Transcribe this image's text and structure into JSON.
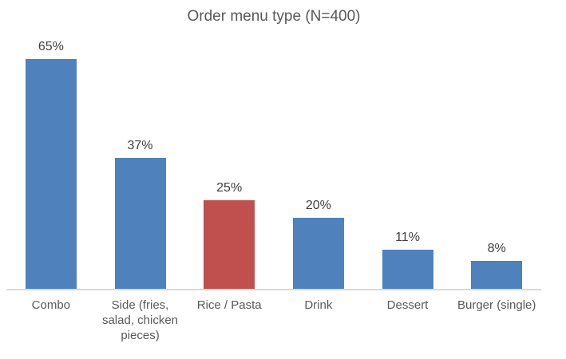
{
  "chart_data": {
    "type": "bar",
    "title": "Order menu type (N=400)",
    "categories": [
      "Combo",
      "Side (fries, salad, chicken pieces)",
      "Rice / Pasta",
      "Drink",
      "Dessert",
      "Burger (single)"
    ],
    "values": [
      65,
      37,
      25,
      20,
      11,
      8
    ],
    "value_labels": [
      "65%",
      "37%",
      "25%",
      "20%",
      "11%",
      "8%"
    ],
    "unit": "%",
    "bar_colors": [
      "#4f81bd",
      "#4f81bd",
      "#c0504d",
      "#4f81bd",
      "#4f81bd",
      "#4f81bd"
    ],
    "highlight_index": 2,
    "xlabel": "",
    "ylabel": "",
    "ylim": [
      0,
      70
    ],
    "grid": false,
    "legend": false,
    "layout": {
      "title_color": "#595959",
      "value_label_color": "#404040",
      "category_label_color": "#595959",
      "axis_line_color": "#d9d9d9",
      "background": "#ffffff",
      "y_axis_visible": false
    }
  }
}
